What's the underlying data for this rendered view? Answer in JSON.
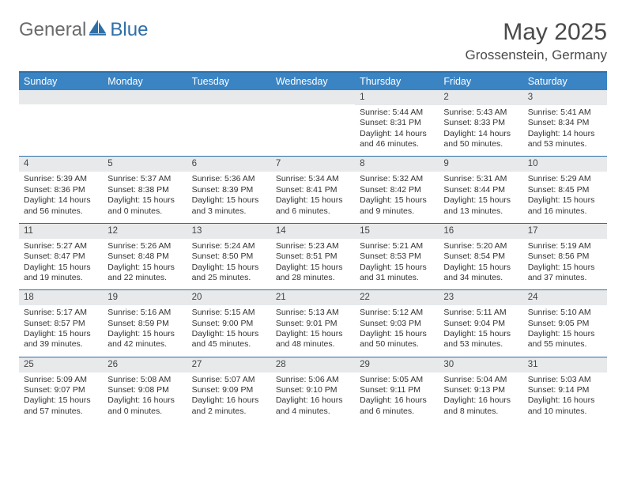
{
  "logo": {
    "text1": "General",
    "text2": "Blue",
    "icon_color": "#2f6fa8",
    "text1_color": "#6b6b6b"
  },
  "title": "May 2025",
  "location": "Grossenstein, Germany",
  "header_bg": "#3a84c4",
  "header_fg": "#ffffff",
  "border_color": "#2f6fa8",
  "daynum_bg": "#e7e9eb",
  "text_color": "#333333",
  "day_names": [
    "Sunday",
    "Monday",
    "Tuesday",
    "Wednesday",
    "Thursday",
    "Friday",
    "Saturday"
  ],
  "first_weekday_index": 4,
  "days": [
    {
      "n": "1",
      "sr": "5:44 AM",
      "ss": "8:31 PM",
      "dl": "14 hours and 46 minutes."
    },
    {
      "n": "2",
      "sr": "5:43 AM",
      "ss": "8:33 PM",
      "dl": "14 hours and 50 minutes."
    },
    {
      "n": "3",
      "sr": "5:41 AM",
      "ss": "8:34 PM",
      "dl": "14 hours and 53 minutes."
    },
    {
      "n": "4",
      "sr": "5:39 AM",
      "ss": "8:36 PM",
      "dl": "14 hours and 56 minutes."
    },
    {
      "n": "5",
      "sr": "5:37 AM",
      "ss": "8:38 PM",
      "dl": "15 hours and 0 minutes."
    },
    {
      "n": "6",
      "sr": "5:36 AM",
      "ss": "8:39 PM",
      "dl": "15 hours and 3 minutes."
    },
    {
      "n": "7",
      "sr": "5:34 AM",
      "ss": "8:41 PM",
      "dl": "15 hours and 6 minutes."
    },
    {
      "n": "8",
      "sr": "5:32 AM",
      "ss": "8:42 PM",
      "dl": "15 hours and 9 minutes."
    },
    {
      "n": "9",
      "sr": "5:31 AM",
      "ss": "8:44 PM",
      "dl": "15 hours and 13 minutes."
    },
    {
      "n": "10",
      "sr": "5:29 AM",
      "ss": "8:45 PM",
      "dl": "15 hours and 16 minutes."
    },
    {
      "n": "11",
      "sr": "5:27 AM",
      "ss": "8:47 PM",
      "dl": "15 hours and 19 minutes."
    },
    {
      "n": "12",
      "sr": "5:26 AM",
      "ss": "8:48 PM",
      "dl": "15 hours and 22 minutes."
    },
    {
      "n": "13",
      "sr": "5:24 AM",
      "ss": "8:50 PM",
      "dl": "15 hours and 25 minutes."
    },
    {
      "n": "14",
      "sr": "5:23 AM",
      "ss": "8:51 PM",
      "dl": "15 hours and 28 minutes."
    },
    {
      "n": "15",
      "sr": "5:21 AM",
      "ss": "8:53 PM",
      "dl": "15 hours and 31 minutes."
    },
    {
      "n": "16",
      "sr": "5:20 AM",
      "ss": "8:54 PM",
      "dl": "15 hours and 34 minutes."
    },
    {
      "n": "17",
      "sr": "5:19 AM",
      "ss": "8:56 PM",
      "dl": "15 hours and 37 minutes."
    },
    {
      "n": "18",
      "sr": "5:17 AM",
      "ss": "8:57 PM",
      "dl": "15 hours and 39 minutes."
    },
    {
      "n": "19",
      "sr": "5:16 AM",
      "ss": "8:59 PM",
      "dl": "15 hours and 42 minutes."
    },
    {
      "n": "20",
      "sr": "5:15 AM",
      "ss": "9:00 PM",
      "dl": "15 hours and 45 minutes."
    },
    {
      "n": "21",
      "sr": "5:13 AM",
      "ss": "9:01 PM",
      "dl": "15 hours and 48 minutes."
    },
    {
      "n": "22",
      "sr": "5:12 AM",
      "ss": "9:03 PM",
      "dl": "15 hours and 50 minutes."
    },
    {
      "n": "23",
      "sr": "5:11 AM",
      "ss": "9:04 PM",
      "dl": "15 hours and 53 minutes."
    },
    {
      "n": "24",
      "sr": "5:10 AM",
      "ss": "9:05 PM",
      "dl": "15 hours and 55 minutes."
    },
    {
      "n": "25",
      "sr": "5:09 AM",
      "ss": "9:07 PM",
      "dl": "15 hours and 57 minutes."
    },
    {
      "n": "26",
      "sr": "5:08 AM",
      "ss": "9:08 PM",
      "dl": "16 hours and 0 minutes."
    },
    {
      "n": "27",
      "sr": "5:07 AM",
      "ss": "9:09 PM",
      "dl": "16 hours and 2 minutes."
    },
    {
      "n": "28",
      "sr": "5:06 AM",
      "ss": "9:10 PM",
      "dl": "16 hours and 4 minutes."
    },
    {
      "n": "29",
      "sr": "5:05 AM",
      "ss": "9:11 PM",
      "dl": "16 hours and 6 minutes."
    },
    {
      "n": "30",
      "sr": "5:04 AM",
      "ss": "9:13 PM",
      "dl": "16 hours and 8 minutes."
    },
    {
      "n": "31",
      "sr": "5:03 AM",
      "ss": "9:14 PM",
      "dl": "16 hours and 10 minutes."
    }
  ],
  "labels": {
    "sunrise": "Sunrise: ",
    "sunset": "Sunset: ",
    "daylight": "Daylight: "
  }
}
